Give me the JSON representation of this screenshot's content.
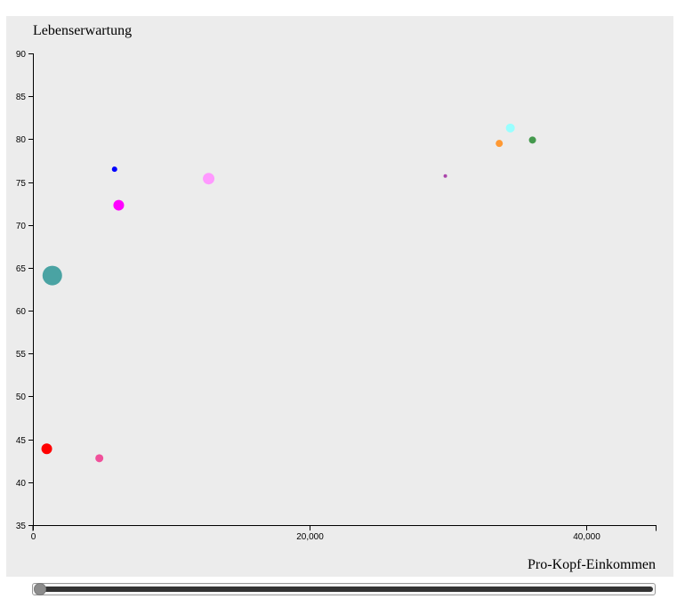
{
  "chart_data": {
    "type": "scatter",
    "xlabel": "Pro-Kopf-Einkommen",
    "ylabel": "Lebenserwartung",
    "xlim": [
      0,
      45000
    ],
    "ylim": [
      35,
      90
    ],
    "x_ticks": [
      0,
      20000,
      40000
    ],
    "y_ticks": [
      35,
      40,
      45,
      50,
      55,
      60,
      65,
      70,
      75,
      80,
      85,
      90
    ],
    "points": [
      {
        "x": 1000,
        "y": 43.9,
        "size": 6,
        "color": "#ff0000"
      },
      {
        "x": 4800,
        "y": 42.8,
        "size": 4.5,
        "color": "#f0509a"
      },
      {
        "x": 1400,
        "y": 64.1,
        "size": 11,
        "color": "#4aa3a3"
      },
      {
        "x": 5900,
        "y": 76.5,
        "size": 3,
        "color": "#0000ff"
      },
      {
        "x": 6200,
        "y": 72.3,
        "size": 6,
        "color": "#ff00ff"
      },
      {
        "x": 12700,
        "y": 75.4,
        "size": 6.5,
        "color": "#ff99ff"
      },
      {
        "x": 29800,
        "y": 75.7,
        "size": 2,
        "color": "#aa44aa"
      },
      {
        "x": 33700,
        "y": 79.5,
        "size": 4,
        "color": "#ff9933"
      },
      {
        "x": 34500,
        "y": 81.3,
        "size": 5,
        "color": "#99ffff"
      },
      {
        "x": 36100,
        "y": 79.9,
        "size": 4,
        "color": "#44994d"
      }
    ]
  },
  "slider": {
    "value": 0
  }
}
